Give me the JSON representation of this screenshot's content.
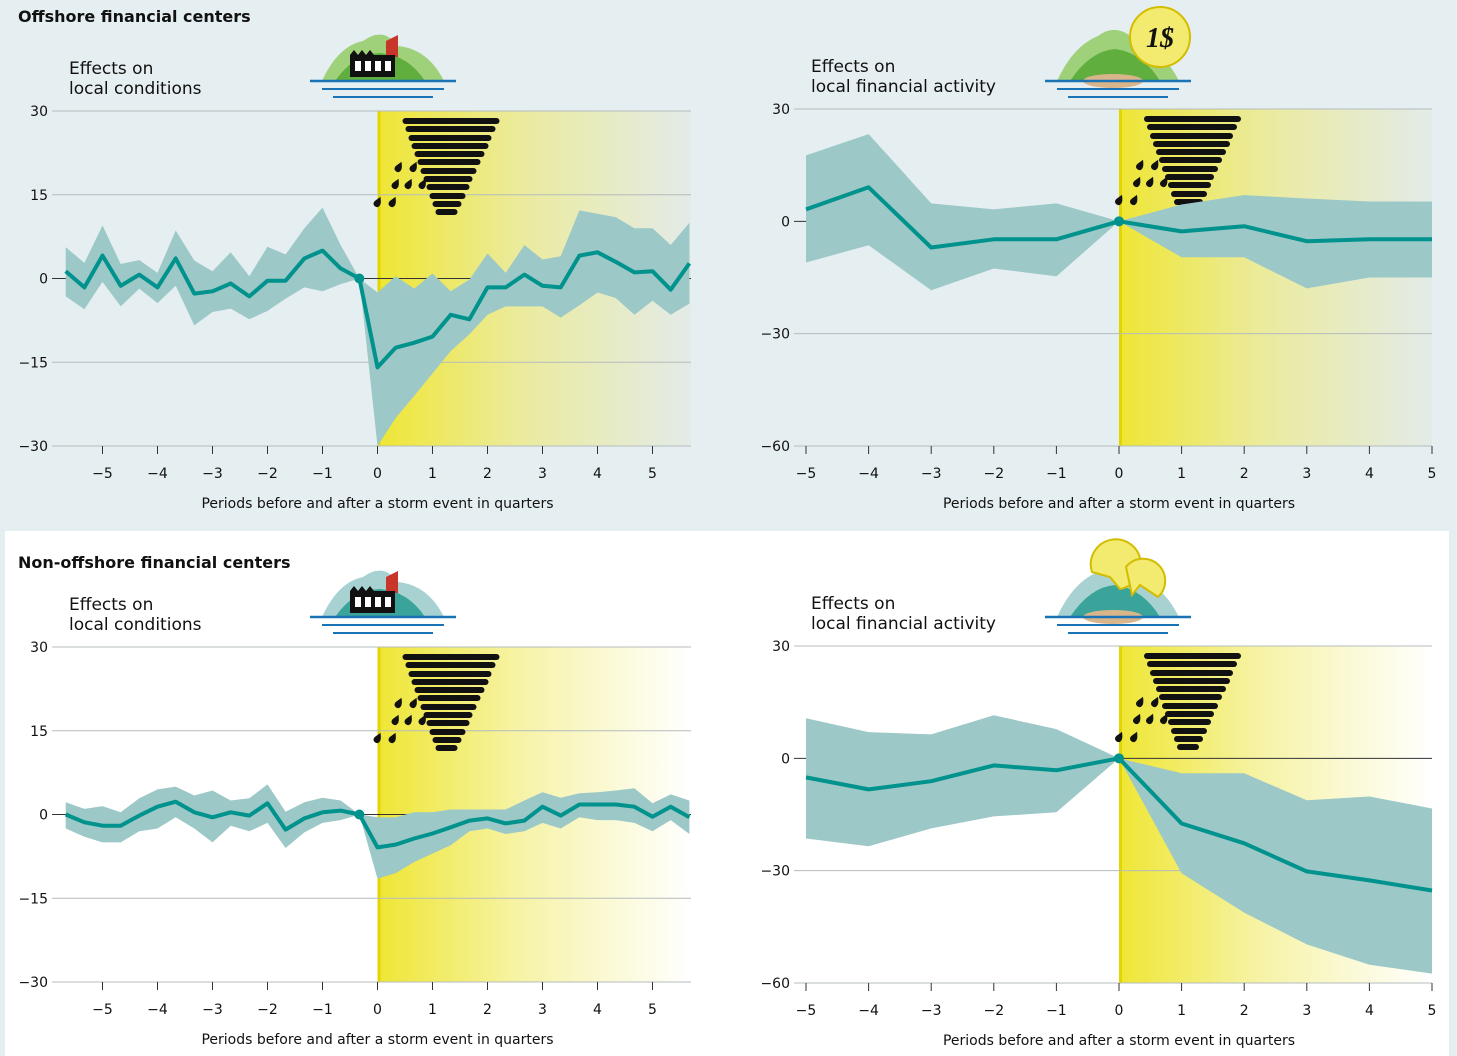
{
  "sections": [
    "Offshore financial centers",
    "Non-offshore financial centers"
  ],
  "coin_text": "1$",
  "chart_data": [
    {
      "type": "line",
      "ylabel": [
        "Effects on",
        "local conditions"
      ],
      "xlabel": "Periods before and after a storm event in quarters",
      "x": [
        -5.67,
        -5.33,
        -5,
        -4.67,
        -4.33,
        -4,
        -3.67,
        -3.33,
        -3,
        -2.67,
        -2.33,
        -2,
        -1.67,
        -1.33,
        -1,
        -0.67,
        -0.33,
        0,
        0.33,
        0.67,
        1,
        1.33,
        1.67,
        2,
        2.33,
        2.67,
        3,
        3.33,
        3.67,
        4,
        4.33,
        4.67,
        5,
        5.33,
        5.67
      ],
      "series": [
        {
          "color": "#00928c",
          "values": [
            1.3,
            -1.6,
            4.1,
            -1.3,
            0.7,
            -1.6,
            3.6,
            -2.7,
            -2.3,
            -0.9,
            -3.2,
            -0.4,
            -0.4,
            3.6,
            5.0,
            1.8,
            0,
            -15.9,
            -12.4,
            -11.5,
            -10.4,
            -6.5,
            -7.3,
            -1.6,
            -1.6,
            0.7,
            -1.3,
            -1.6,
            4.1,
            4.7,
            3.0,
            1.1,
            1.3,
            -2.0,
            2.7
          ]
        }
      ],
      "band": {
        "color": "#9cc8c7",
        "upper": [
          5.6,
          2.8,
          9.5,
          2.6,
          3.3,
          1.0,
          8.6,
          3.2,
          1.3,
          4.7,
          0.4,
          5.7,
          4.3,
          9.0,
          12.7,
          6.0,
          0,
          -2.5,
          0.4,
          -1.8,
          0.9,
          -2.3,
          -0.2,
          4.5,
          1.0,
          6.0,
          3.4,
          4.0,
          12.2,
          11.6,
          11.0,
          9.0,
          9.0,
          6.0,
          10
        ],
        "lower": [
          -3.2,
          -5.5,
          -0.6,
          -5.0,
          -1.8,
          -4.4,
          -1.3,
          -8.4,
          -6.0,
          -5.4,
          -7.3,
          -5.8,
          -3.6,
          -1.6,
          -2.3,
          -1.0,
          0,
          -30,
          -25,
          -21,
          -17,
          -13,
          -10,
          -6.5,
          -5.0,
          -5.0,
          -5.0,
          -7.0,
          -4.8,
          -2.5,
          -3.5,
          -6.5,
          -4.0,
          -6.5,
          -4.5
        ]
      },
      "xlim": [
        -5.7,
        5.7
      ],
      "ylim": [
        -30,
        30
      ],
      "xticks": [
        {
          "value": -5,
          "label": "−5"
        },
        {
          "value": -4,
          "label": "−4"
        },
        {
          "value": -3,
          "label": "−3"
        },
        {
          "value": -2,
          "label": "−2"
        },
        {
          "value": -1,
          "label": "−1"
        },
        0,
        1,
        2,
        3,
        4,
        5
      ],
      "yticks": [
        30,
        15,
        0,
        {
          "value": -15,
          "label": "−15"
        },
        {
          "value": -30,
          "label": "−30"
        }
      ],
      "grid": true
    },
    {
      "type": "line",
      "ylabel": [
        "Effects on",
        "local financial activity"
      ],
      "xlabel": "Periods before and after a storm event in quarters",
      "x": [
        -5,
        -4,
        -3,
        -2,
        -1,
        0,
        1,
        2,
        3,
        4,
        5
      ],
      "series": [
        {
          "color": "#00928c",
          "values": [
            3.2,
            9.1,
            -7,
            -4.8,
            -4.8,
            0,
            -2.7,
            -1.3,
            -5.3,
            -4.8,
            -4.8
          ]
        }
      ],
      "band": {
        "color": "#9cc8c7",
        "upper": [
          17.6,
          23.3,
          4.8,
          3.2,
          4.8,
          0,
          4.5,
          7,
          6.1,
          5.3,
          5.3
        ],
        "lower": [
          -11,
          -6.4,
          -18.4,
          -12.6,
          -14.7,
          0,
          -9.6,
          -9.6,
          -17.9,
          -15,
          -15
        ]
      },
      "xlim": [
        -5,
        5
      ],
      "ylim": [
        -60,
        30
      ],
      "xticks": [
        {
          "value": -5,
          "label": "−5"
        },
        {
          "value": -4,
          "label": "−4"
        },
        {
          "value": -3,
          "label": "−3"
        },
        {
          "value": -2,
          "label": "−2"
        },
        {
          "value": -1,
          "label": "−1"
        },
        0,
        1,
        2,
        3,
        4,
        5
      ],
      "yticks": [
        30,
        0,
        {
          "value": -30,
          "label": "−30"
        },
        {
          "value": -60,
          "label": "−60"
        }
      ],
      "grid": true
    },
    {
      "type": "line",
      "ylabel": [
        "Effects on",
        "local conditions"
      ],
      "xlabel": "Periods before and after a storm event in quarters",
      "x": [
        -5.67,
        -5.33,
        -5,
        -4.67,
        -4.33,
        -4,
        -3.67,
        -3.33,
        -3,
        -2.67,
        -2.33,
        -2,
        -1.67,
        -1.33,
        -1,
        -0.67,
        -0.33,
        0,
        0.33,
        0.67,
        1,
        1.33,
        1.67,
        2,
        2.33,
        2.67,
        3,
        3.33,
        3.67,
        4,
        4.33,
        4.67,
        5,
        5.33,
        5.67
      ],
      "series": [
        {
          "color": "#00928c",
          "values": [
            0,
            -1.4,
            -2,
            -2,
            -0.2,
            1.4,
            2.3,
            0.4,
            -0.5,
            0.4,
            -0.2,
            2,
            -2.7,
            -0.7,
            0.4,
            0.7,
            0,
            -5.9,
            -5.4,
            -4.3,
            -3.4,
            -2.3,
            -1.1,
            -0.7,
            -1.6,
            -1.1,
            1.4,
            -0.2,
            1.8,
            1.8,
            1.8,
            1.4,
            -0.4,
            1.4,
            -0.5
          ]
        }
      ],
      "band": {
        "color": "#9cc8c7",
        "upper": [
          2.2,
          1.0,
          1.5,
          0.4,
          2.9,
          4.5,
          5.0,
          3.4,
          4.3,
          2.5,
          2.9,
          5.4,
          0.5,
          2.2,
          3.0,
          2.5,
          0,
          -0.5,
          -0.5,
          0.4,
          0.4,
          0.9,
          0.9,
          0.9,
          0.9,
          2.5,
          4.0,
          3.0,
          3.8,
          4.0,
          4.3,
          4.7,
          2.0,
          3.6,
          2.5
        ],
        "lower": [
          -2.5,
          -4.0,
          -5.0,
          -5.0,
          -3.0,
          -2.5,
          -0.5,
          -2.5,
          -5.0,
          -2.0,
          -3.0,
          -1.5,
          -6.0,
          -3.2,
          -1.5,
          -1.0,
          0,
          -11.5,
          -10.5,
          -8.5,
          -7.0,
          -5.5,
          -3.0,
          -2.5,
          -3.5,
          -3.0,
          -1.5,
          -2.5,
          -0.5,
          -1.0,
          -1.0,
          -1.5,
          -3.0,
          -1.0,
          -3.5
        ]
      },
      "xlim": [
        -5.7,
        5.7
      ],
      "ylim": [
        -30,
        30
      ],
      "xticks": [
        {
          "value": -5,
          "label": "−5"
        },
        {
          "value": -4,
          "label": "−4"
        },
        {
          "value": -3,
          "label": "−3"
        },
        {
          "value": -2,
          "label": "−2"
        },
        {
          "value": -1,
          "label": "−1"
        },
        0,
        1,
        2,
        3,
        4,
        5
      ],
      "yticks": [
        30,
        15,
        0,
        {
          "value": -15,
          "label": "−15"
        },
        {
          "value": -30,
          "label": "−30"
        }
      ],
      "grid": true
    },
    {
      "type": "line",
      "ylabel": [
        "Effects on",
        "local financial activity"
      ],
      "xlabel": "Periods before and after a storm event in quarters",
      "x": [
        -5,
        -4,
        -3,
        -2,
        -1,
        0,
        1,
        2,
        3,
        4,
        5
      ],
      "series": [
        {
          "color": "#00928c",
          "values": [
            -5.1,
            -8.3,
            -6.1,
            -1.9,
            -3.2,
            0,
            -17.4,
            -22.7,
            -30.2,
            -32.6,
            -35.3
          ]
        }
      ],
      "band": {
        "color": "#9cc8c7",
        "upper": [
          10.7,
          7,
          6.4,
          11.5,
          7.8,
          0,
          -4,
          -4,
          -11.2,
          -10.2,
          -13.4
        ],
        "lower": [
          -21.4,
          -23.5,
          -18.7,
          -15.5,
          -14.4,
          0,
          -30.7,
          -41.2,
          -49.7,
          -55.1,
          -57.5
        ]
      },
      "xlim": [
        -5,
        5
      ],
      "ylim": [
        -60,
        30
      ],
      "xticks": [
        {
          "value": -5,
          "label": "−5"
        },
        {
          "value": -4,
          "label": "−4"
        },
        {
          "value": -3,
          "label": "−3"
        },
        {
          "value": -2,
          "label": "−2"
        },
        {
          "value": -1,
          "label": "−1"
        },
        0,
        1,
        2,
        3,
        4,
        5
      ],
      "yticks": [
        30,
        0,
        {
          "value": -30,
          "label": "−30"
        },
        {
          "value": -60,
          "label": "−60"
        }
      ],
      "grid": true
    }
  ]
}
